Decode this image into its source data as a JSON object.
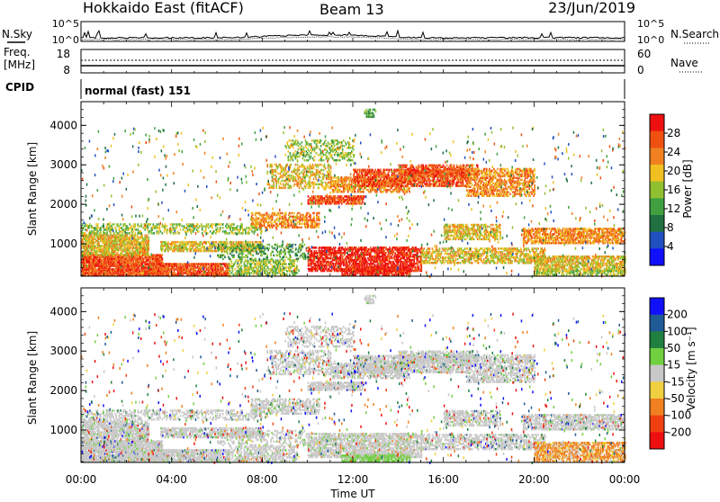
{
  "header": {
    "title": "Hokkaido East (fitACF)",
    "beam": "Beam 13",
    "date": "23/Jun/2019"
  },
  "nsky_panel": {
    "label": "N.Sky",
    "right_label": "N.Search",
    "left_ticks": [
      "10^5",
      "10^0"
    ],
    "right_ticks": [
      "10^5",
      "10^0"
    ]
  },
  "freq_panel": {
    "label_line1": "Freq.",
    "label_line2": "[MHz]",
    "left_ticks": [
      "18",
      "8"
    ],
    "right_ticks": [
      "60",
      "0"
    ],
    "right_label": "Nave"
  },
  "cpid_panel": {
    "label": "CPID",
    "text": "normal (fast) 151"
  },
  "colors": {
    "power": [
      "#1010ff",
      "#2050c0",
      "#207040",
      "#40a040",
      "#90c030",
      "#f0c020",
      "#f08020",
      "#f05010",
      "#ee1010"
    ],
    "velocity": [
      "#1010ff",
      "#1e5a96",
      "#208040",
      "#70d040",
      "#c8c8c8",
      "#f0d040",
      "#f08020",
      "#f04010",
      "#ee1010"
    ]
  },
  "chart_data": [
    {
      "type": "heatmap",
      "name": "power",
      "ylabel": "Slant Range [km]",
      "xlabel": "",
      "x_ticks": [
        "00:00",
        "04:00",
        "08:00",
        "12:00",
        "16:00",
        "20:00",
        "00:00"
      ],
      "xlim_hours": [
        0,
        24
      ],
      "ylim_km": [
        180,
        4600
      ],
      "y_ticks": [
        "1000",
        "2000",
        "3000",
        "4000"
      ],
      "colorbar": {
        "label": "Power [dB]",
        "ticks": [
          "4",
          "8",
          "12",
          "16",
          "20",
          "24",
          "28"
        ],
        "range": [
          0,
          32
        ]
      }
    },
    {
      "type": "heatmap",
      "name": "velocity",
      "ylabel": "Slant Range [km]",
      "xlabel": "Time UT",
      "x_ticks": [
        "00:00",
        "04:00",
        "08:00",
        "12:00",
        "16:00",
        "20:00",
        "00:00"
      ],
      "xlim_hours": [
        0,
        24
      ],
      "ylim_km": [
        180,
        4600
      ],
      "y_ticks": [
        "1000",
        "2000",
        "3000",
        "4000"
      ],
      "colorbar": {
        "label": "Velocity [m s⁻¹]",
        "ticks": [
          "200",
          "100",
          "50",
          "15",
          "-15",
          "-50",
          "-100",
          "-200"
        ]
      }
    }
  ]
}
